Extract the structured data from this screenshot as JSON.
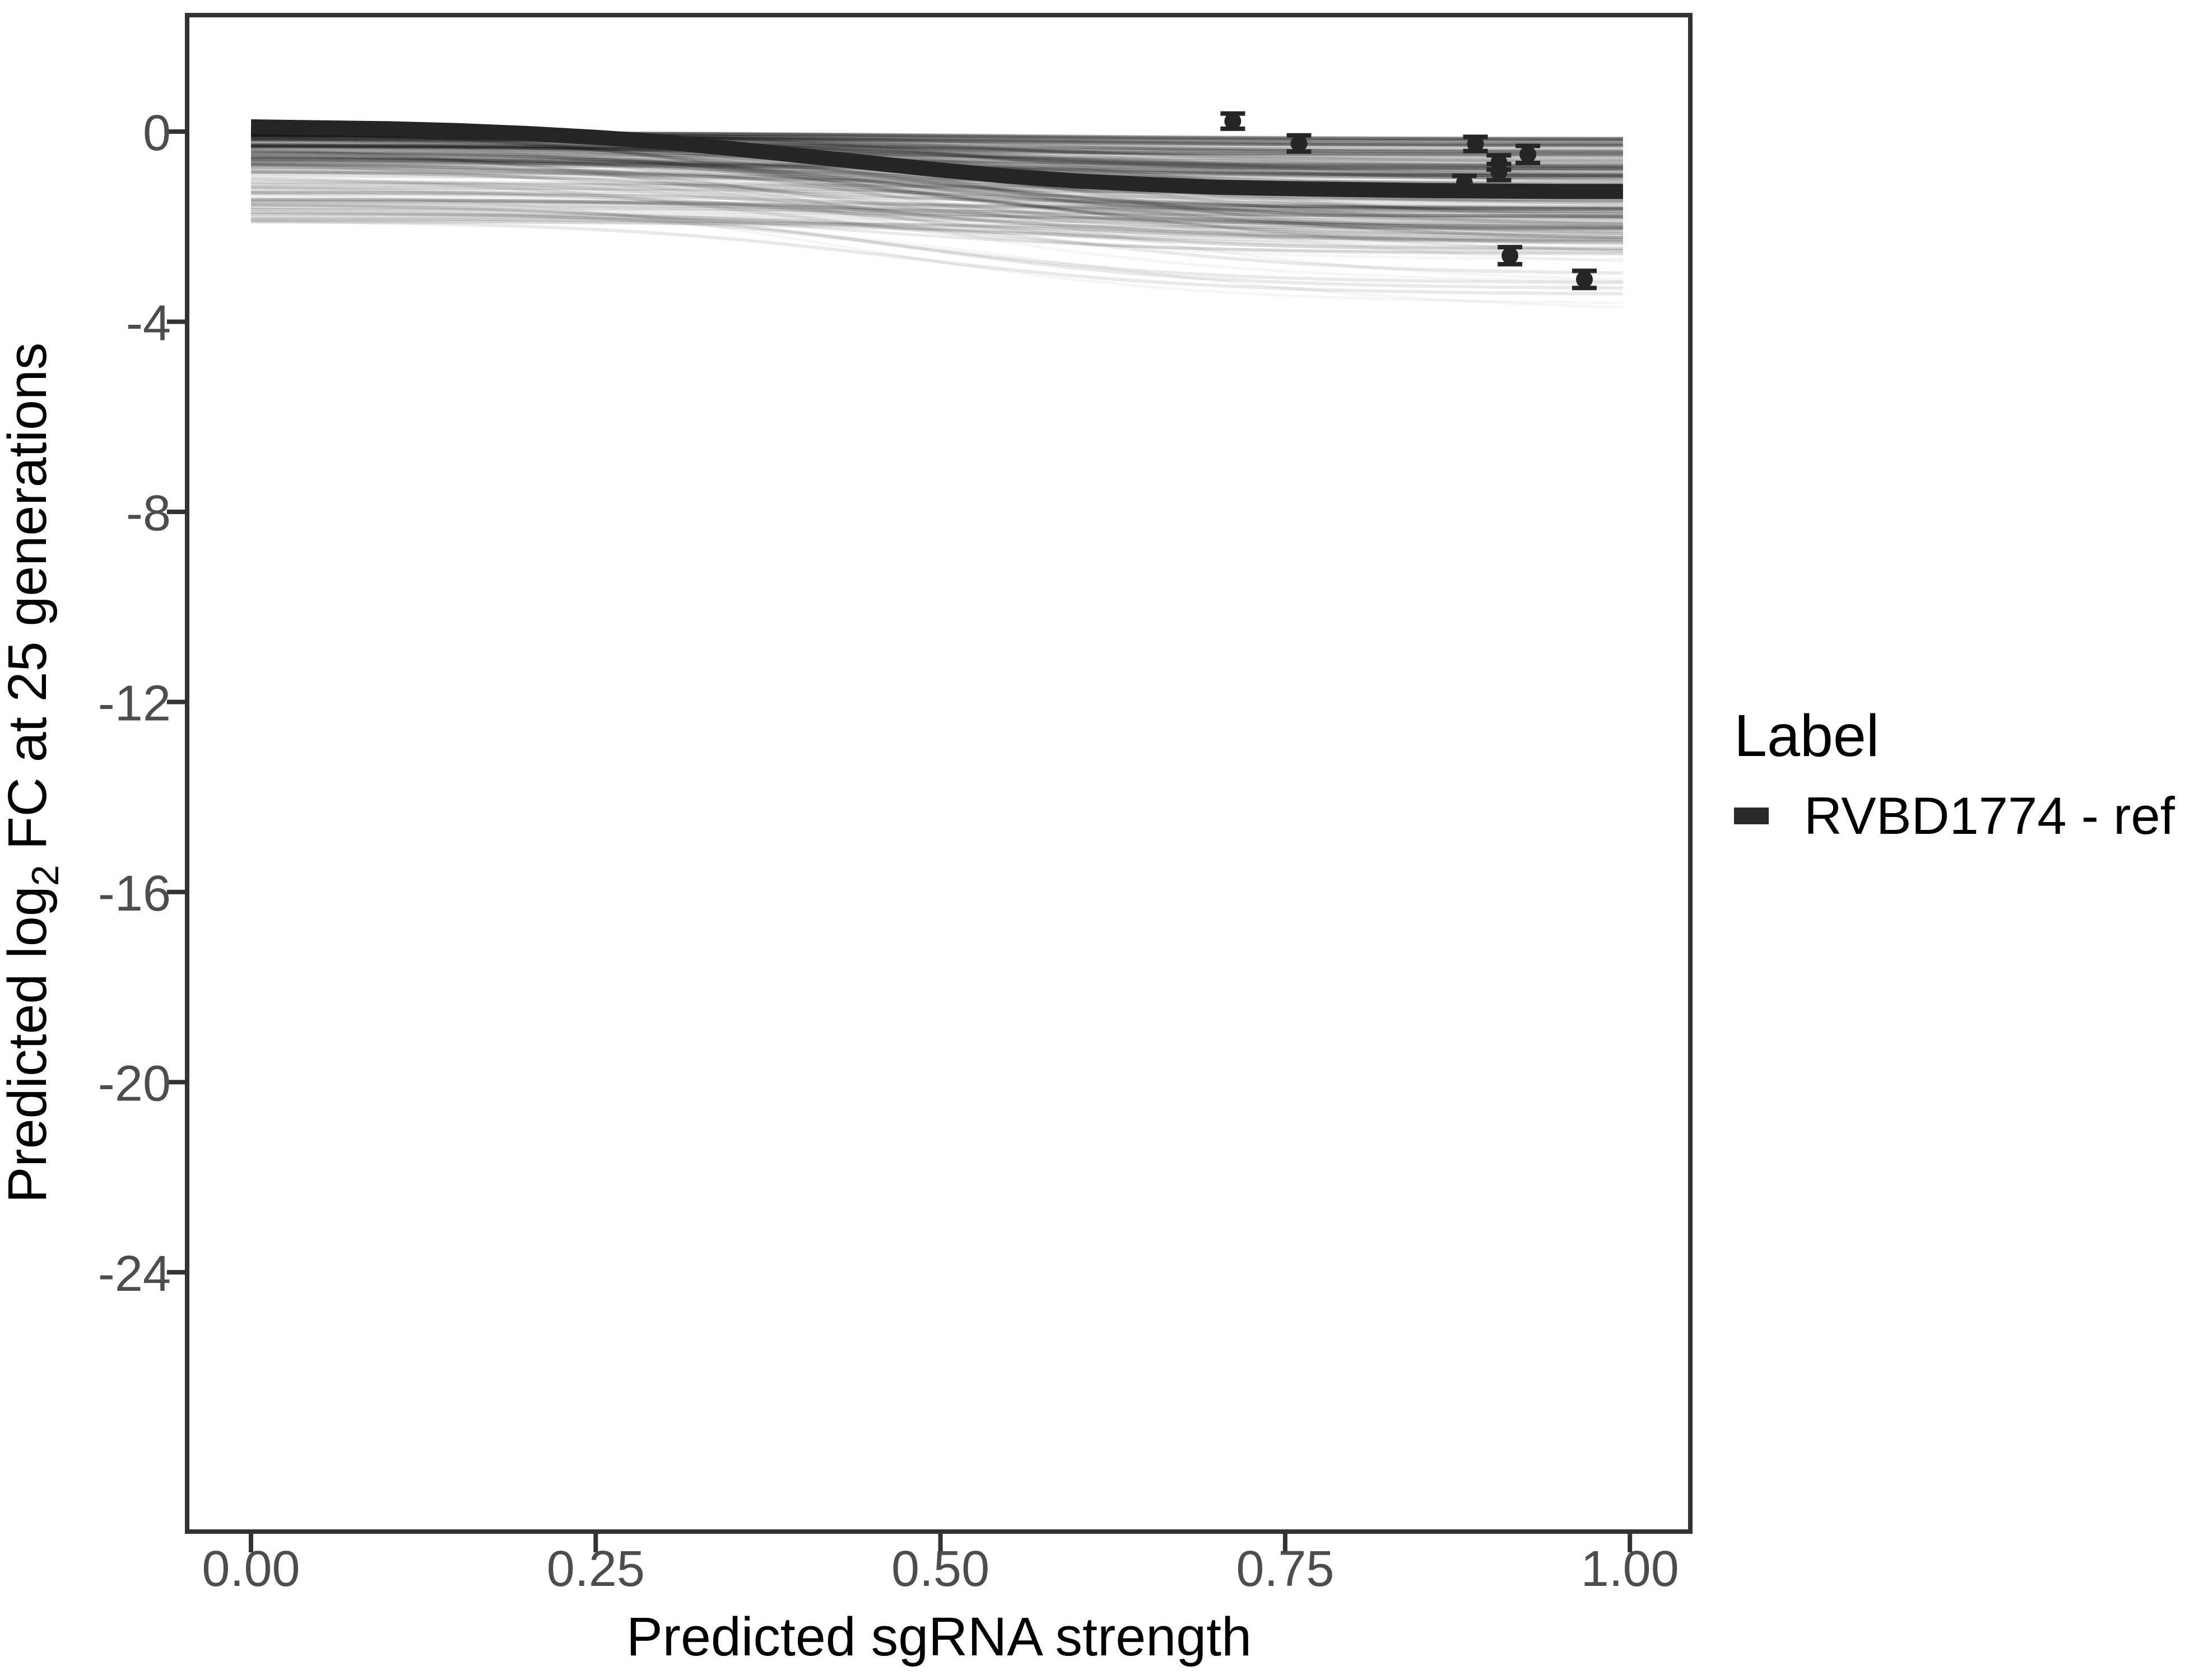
{
  "figure": {
    "background": "#ffffff",
    "description": "Posterior predictive curves of sgRNA depletion for one gene"
  },
  "chart_data": {
    "type": "line",
    "title": "",
    "xlabel": "Predicted sgRNA strength",
    "ylabel": "Predicted log2 FC at 25 generations",
    "ylabel_parts": {
      "prefix": "Predicted  log",
      "sub": "2",
      "suffix": " FC at 25 generations"
    },
    "xlim": [
      -0.047,
      1.045
    ],
    "ylim": [
      -29.45,
      2.45
    ],
    "grid": false,
    "x_ticks": {
      "values": [
        0.0,
        0.25,
        0.5,
        0.75,
        1.0
      ],
      "labels": [
        "0.00",
        "0.25",
        "0.50",
        "0.75",
        "1.00"
      ]
    },
    "y_ticks": {
      "values": [
        0,
        -4,
        -8,
        -12,
        -16,
        -20,
        -24
      ],
      "labels": [
        "0",
        "-4",
        "-8",
        "-12",
        "-16",
        "-20",
        "-24"
      ]
    },
    "legend": {
      "position": "right",
      "title": "Label",
      "entries": [
        {
          "label": "RVBD1774 - ref",
          "color": "#2a2a2a"
        }
      ]
    },
    "main_curve": {
      "name": "RVBD1774 - ref",
      "x": [
        0.0,
        0.05,
        0.1,
        0.15,
        0.2,
        0.25,
        0.3,
        0.35,
        0.4,
        0.45,
        0.5,
        0.55,
        0.6,
        0.65,
        0.7,
        0.75,
        0.8,
        0.85,
        0.9,
        0.95,
        0.995
      ],
      "y": [
        0.1,
        0.08,
        0.06,
        0.02,
        -0.04,
        -0.12,
        -0.22,
        -0.36,
        -0.51,
        -0.66,
        -0.81,
        -0.94,
        -1.04,
        -1.11,
        -1.17,
        -1.2,
        -1.22,
        -1.24,
        -1.25,
        -1.26,
        -1.26
      ]
    },
    "observed_points": [
      {
        "x": 0.712,
        "y": 0.22,
        "err": 0.16
      },
      {
        "x": 0.76,
        "y": -0.25,
        "err": 0.17
      },
      {
        "x": 0.888,
        "y": -0.26,
        "err": 0.15
      },
      {
        "x": 0.926,
        "y": -0.48,
        "err": 0.18
      },
      {
        "x": 0.905,
        "y": -0.65,
        "err": 0.15
      },
      {
        "x": 0.905,
        "y": -0.85,
        "err": 0.17
      },
      {
        "x": 0.88,
        "y": -1.08,
        "err": 0.15
      },
      {
        "x": 0.913,
        "y": -2.61,
        "err": 0.18
      },
      {
        "x": 0.967,
        "y": -3.11,
        "err": 0.18
      }
    ],
    "ensemble": {
      "description": "translucent posterior sample curves forming gray band",
      "count": 170,
      "faint_count": 30,
      "seed": 42,
      "x_end": 0.995,
      "start_range": [
        0.0,
        -1.9
      ],
      "end_range": [
        -0.15,
        -3.7
      ]
    },
    "colors": {
      "curve": "#262626",
      "point": "#262626",
      "ensemble": "#000000",
      "axis": "#333333",
      "tick_text": "#4d4d4d",
      "title_text": "#000000"
    }
  }
}
